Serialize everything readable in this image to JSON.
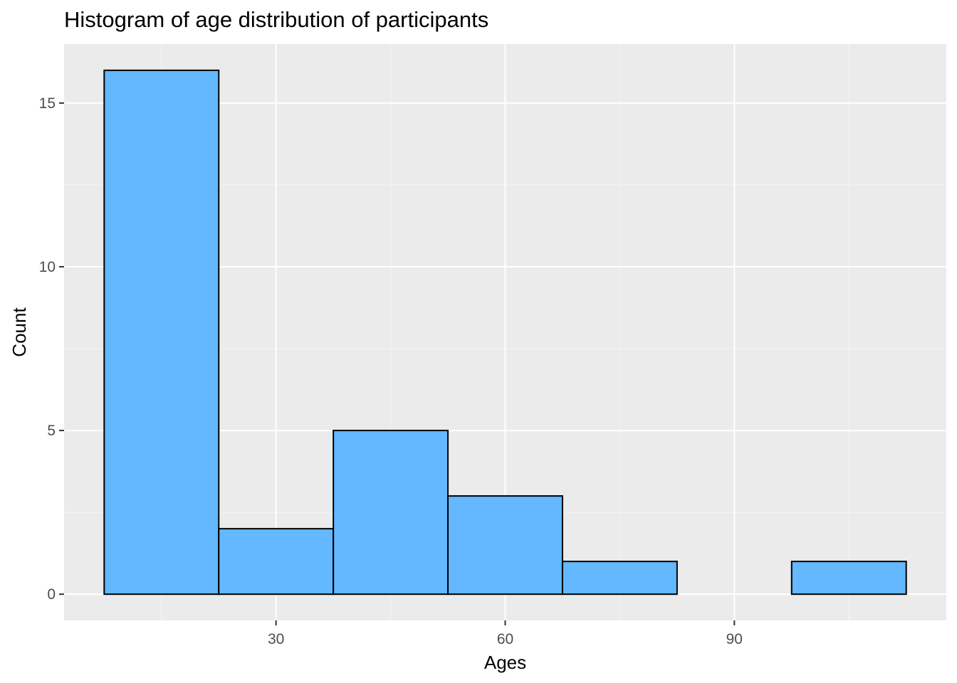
{
  "chart_data": {
    "type": "bar",
    "title": "Histogram of age distribution of participants",
    "xlabel": "Ages",
    "ylabel": "Count",
    "bins": [
      {
        "start": 7.5,
        "end": 22.5,
        "count": 16
      },
      {
        "start": 22.5,
        "end": 37.5,
        "count": 2
      },
      {
        "start": 37.5,
        "end": 52.5,
        "count": 5
      },
      {
        "start": 52.5,
        "end": 67.5,
        "count": 3
      },
      {
        "start": 67.5,
        "end": 82.5,
        "count": 1
      },
      {
        "start": 82.5,
        "end": 97.5,
        "count": 0
      },
      {
        "start": 97.5,
        "end": 112.5,
        "count": 1
      }
    ],
    "x_ticks": [
      "30",
      "60",
      "90"
    ],
    "y_ticks": [
      "0",
      "5",
      "10",
      "15"
    ],
    "xlim": [
      2.25,
      117.75
    ],
    "ylim": [
      -0.8,
      16.8
    ],
    "grid": true,
    "colors": {
      "panel_background": "#ebebeb",
      "grid_major": "#ffffff",
      "grid_minor": "#f5f5f5",
      "bar_fill": "#63b8ff",
      "bar_stroke": "#000000",
      "tick_text": "#4d4d4d"
    }
  }
}
